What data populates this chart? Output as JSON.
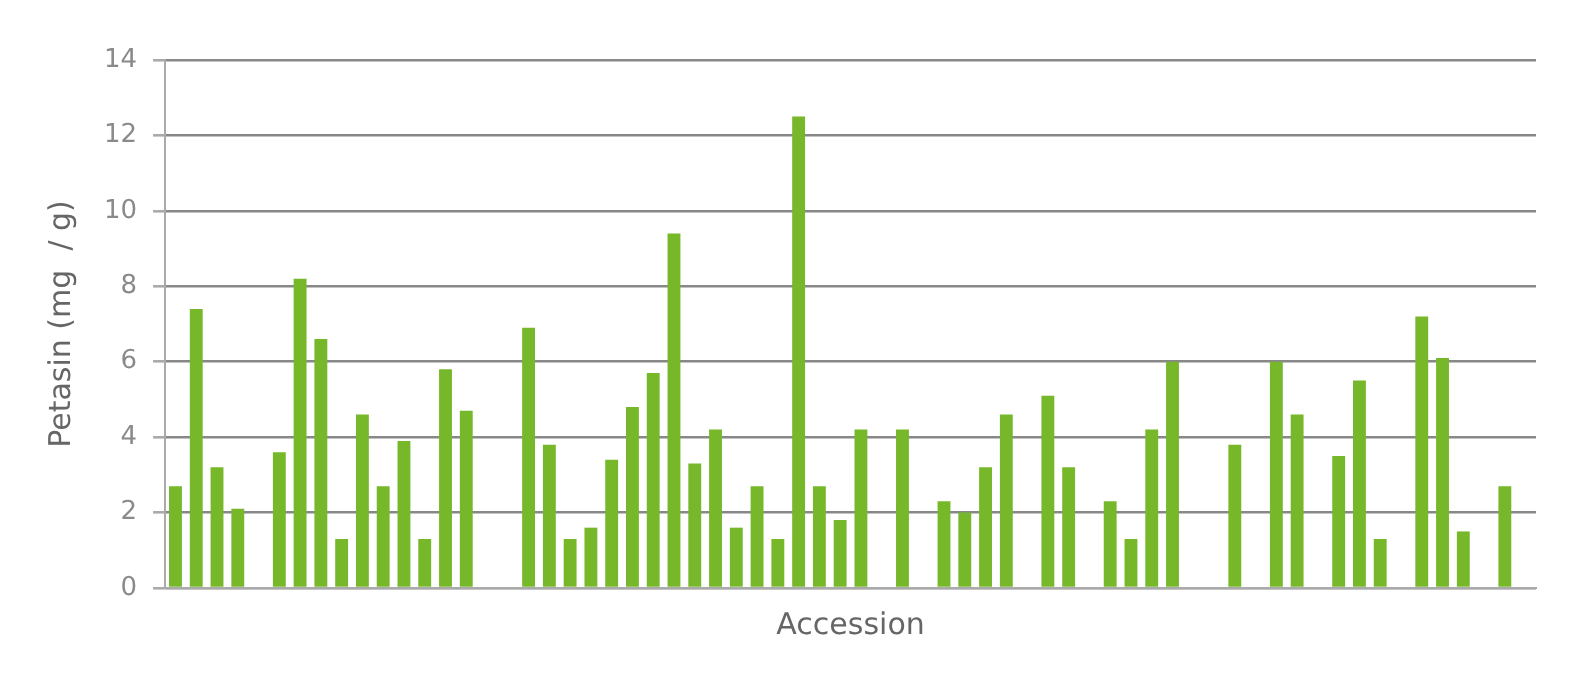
{
  "chart_data": {
    "type": "bar",
    "xlabel": "Accession",
    "ylabel": "Petasin (mg  / g)",
    "categories": [
      null,
      null,
      null,
      null,
      null,
      null,
      null,
      null,
      null,
      null,
      null,
      null,
      null,
      null,
      null,
      null,
      null,
      null,
      null,
      null,
      null,
      null,
      null,
      null,
      null,
      null,
      null,
      null,
      null,
      null,
      null,
      null,
      null,
      null,
      null,
      null,
      null,
      null,
      null,
      null,
      null,
      null,
      null,
      null,
      null,
      null,
      null,
      null,
      null,
      null,
      null,
      null,
      null,
      null,
      null,
      null,
      null,
      null,
      null,
      null,
      null,
      null,
      null,
      null,
      null,
      null
    ],
    "values": [
      2.7,
      7.4,
      3.2,
      2.1,
      null,
      3.6,
      8.2,
      6.6,
      1.3,
      4.6,
      2.7,
      3.9,
      1.3,
      5.8,
      4.7,
      null,
      null,
      6.9,
      3.8,
      1.3,
      1.6,
      3.4,
      4.8,
      5.7,
      9.4,
      3.3,
      4.2,
      1.6,
      2.7,
      1.3,
      12.5,
      2.7,
      1.8,
      4.2,
      null,
      4.2,
      null,
      2.3,
      2.0,
      3.2,
      4.6,
      null,
      5.1,
      3.2,
      null,
      2.3,
      1.3,
      4.2,
      6.0,
      null,
      null,
      3.8,
      null,
      6.0,
      4.6,
      null,
      3.5,
      5.5,
      1.3,
      null,
      7.2,
      6.1,
      1.5,
      null,
      2.7,
      null
    ],
    "color": "#77b82a",
    "ylim": [
      0,
      14
    ],
    "yticks": [
      0,
      2,
      4,
      6,
      8,
      10,
      12,
      14
    ],
    "grid": "y",
    "tick_labels": "y",
    "legend": false
  }
}
